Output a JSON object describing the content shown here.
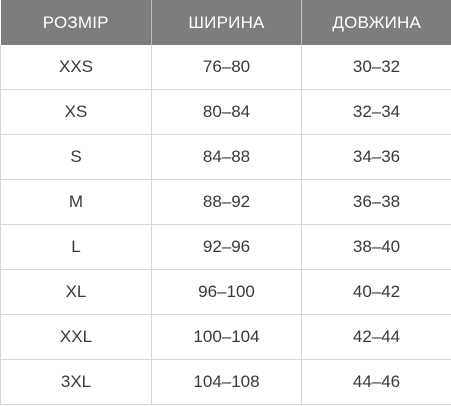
{
  "table": {
    "headers": [
      "РОЗМІР",
      "ШИРИНА",
      "ДОВЖИНА"
    ],
    "rows": [
      [
        "XXS",
        "76–80",
        "30–32"
      ],
      [
        "XS",
        "80–84",
        "32–34"
      ],
      [
        "S",
        "84–88",
        "34–36"
      ],
      [
        "M",
        "88–92",
        "36–38"
      ],
      [
        "L",
        "92–96",
        "38–40"
      ],
      [
        "XL",
        "96–100",
        "40–42"
      ],
      [
        "XXL",
        "100–104",
        "42–44"
      ],
      [
        "3XL",
        "104–108",
        "44–46"
      ]
    ]
  },
  "colors": {
    "header_bg": "#7d7d7d",
    "header_text": "#ffffff",
    "cell_text": "#3a3a3a",
    "grid": "#d6d6d6"
  }
}
